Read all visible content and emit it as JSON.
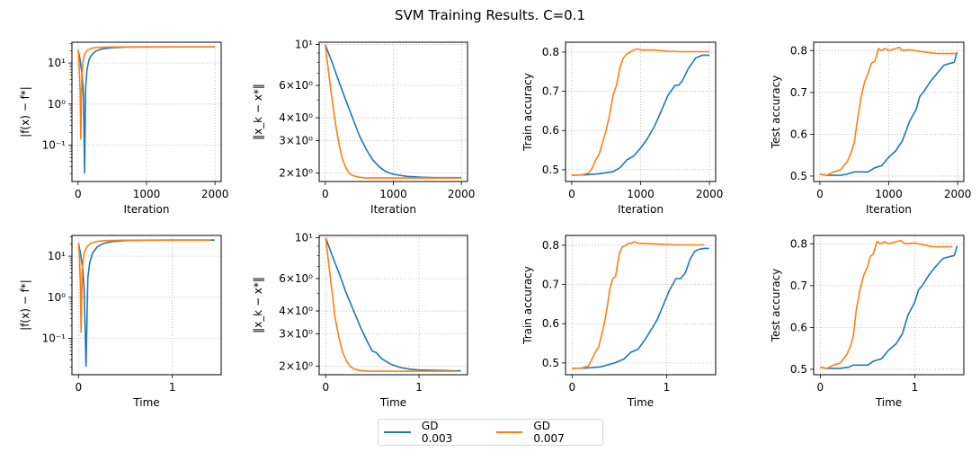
{
  "figure": {
    "title": "SVM Training Results. C=0.1"
  },
  "legend": {
    "placement": "bottom-center",
    "items": [
      {
        "label": "GD 0.003",
        "color": "#1f77b4"
      },
      {
        "label": "GD 0.007",
        "color": "#ff7f0e"
      }
    ]
  },
  "chart_data": [
    {
      "id": "func-gap-iter",
      "type": "line",
      "yscale": "log",
      "xlabel": "Iteration",
      "ylabel": "|f(x) − f*|",
      "xlim": [
        -90,
        2090
      ],
      "ylim": [
        0.013,
        32
      ],
      "xticks": [
        0,
        1000,
        2000
      ],
      "xtick_labels": [
        "0",
        "1000",
        "2000"
      ],
      "yticks": [
        0.1,
        1,
        10
      ],
      "ytick_labels": [
        "10⁻¹",
        "10⁰",
        "10¹"
      ],
      "grid": true,
      "series": [
        {
          "name": "GD 0.003",
          "x": [
            0,
            30,
            60,
            80,
            95,
            110,
            130,
            160,
            200,
            260,
            350,
            500,
            700,
            1000,
            1500,
            2000
          ],
          "y": [
            21,
            12,
            5,
            1.5,
            0.021,
            2.5,
            7,
            12,
            16,
            19.5,
            22,
            23.5,
            24.2,
            24.5,
            24.6,
            24.6
          ]
        },
        {
          "name": "GD 0.007",
          "x": [
            0,
            15,
            30,
            40,
            55,
            75,
            100,
            140,
            200,
            300,
            500,
            1000,
            1500,
            2000
          ],
          "y": [
            21,
            10,
            2,
            0.14,
            5,
            12,
            17,
            20.5,
            22.8,
            24,
            24.5,
            24.6,
            24.6,
            24.6
          ]
        }
      ]
    },
    {
      "id": "dist-iter",
      "type": "line",
      "yscale": "log",
      "xlabel": "Iteration",
      "ylabel": "‖x_k − x*‖",
      "xlim": [
        -90,
        2090
      ],
      "ylim": [
        1.8,
        10.3
      ],
      "xticks": [
        0,
        1000,
        2000
      ],
      "xtick_labels": [
        "0",
        "1000",
        "2000"
      ],
      "yticks": [
        2,
        3,
        4,
        6,
        10
      ],
      "ytick_labels": [
        "2×10⁰",
        "3×10⁰",
        "4×10⁰",
        "6×10⁰",
        "10¹"
      ],
      "grid": true,
      "series": [
        {
          "name": "GD 0.003",
          "x": [
            0,
            100,
            200,
            300,
            400,
            500,
            600,
            700,
            800,
            900,
            1000,
            1200,
            1400,
            1600,
            2000
          ],
          "y": [
            10,
            8.0,
            6.3,
            5.0,
            4.0,
            3.2,
            2.7,
            2.35,
            2.15,
            2.03,
            1.97,
            1.92,
            1.9,
            1.89,
            1.89
          ]
        },
        {
          "name": "GD 0.007",
          "x": [
            0,
            50,
            100,
            150,
            200,
            250,
            300,
            350,
            400,
            500,
            600,
            800,
            1000,
            2000
          ],
          "y": [
            10,
            7.0,
            5.0,
            3.7,
            2.9,
            2.4,
            2.15,
            2.0,
            1.94,
            1.9,
            1.88,
            1.88,
            1.88,
            1.88
          ]
        }
      ]
    },
    {
      "id": "train-acc-iter",
      "type": "line",
      "xlabel": "Iteration",
      "ylabel": "Train accuracy",
      "xlim": [
        -90,
        2090
      ],
      "ylim": [
        0.47,
        0.825
      ],
      "xticks": [
        0,
        1000,
        2000
      ],
      "xtick_labels": [
        "0",
        "1000",
        "2000"
      ],
      "yticks": [
        0.5,
        0.6,
        0.7,
        0.8
      ],
      "ytick_labels": [
        "0.5",
        "0.6",
        "0.7",
        "0.8"
      ],
      "grid": true,
      "series": [
        {
          "name": "GD 0.003",
          "x": [
            0,
            200,
            400,
            600,
            700,
            800,
            900,
            1000,
            1100,
            1200,
            1300,
            1400,
            1500,
            1550,
            1600,
            1700,
            1800,
            1900,
            2000
          ],
          "y": [
            0.486,
            0.487,
            0.49,
            0.495,
            0.505,
            0.525,
            0.535,
            0.555,
            0.58,
            0.61,
            0.65,
            0.69,
            0.715,
            0.715,
            0.725,
            0.76,
            0.785,
            0.792,
            0.792
          ]
        },
        {
          "name": "GD 0.007",
          "x": [
            0,
            150,
            250,
            300,
            350,
            400,
            450,
            500,
            550,
            600,
            650,
            700,
            750,
            800,
            850,
            900,
            950,
            1000,
            1200,
            1400,
            1600,
            2000
          ],
          "y": [
            0.486,
            0.487,
            0.492,
            0.505,
            0.525,
            0.54,
            0.57,
            0.6,
            0.64,
            0.69,
            0.715,
            0.76,
            0.785,
            0.795,
            0.8,
            0.805,
            0.808,
            0.805,
            0.805,
            0.802,
            0.801,
            0.801
          ]
        }
      ]
    },
    {
      "id": "test-acc-iter",
      "type": "line",
      "xlabel": "Iteration",
      "ylabel": "Test accuracy",
      "xlim": [
        -90,
        2090
      ],
      "ylim": [
        0.487,
        0.82
      ],
      "xticks": [
        0,
        1000,
        2000
      ],
      "xtick_labels": [
        "0",
        "1000",
        "2000"
      ],
      "yticks": [
        0.5,
        0.6,
        0.7,
        0.8
      ],
      "ytick_labels": [
        "0.5",
        "0.6",
        "0.7",
        "0.8"
      ],
      "grid": true,
      "series": [
        {
          "name": "GD 0.003",
          "x": [
            0,
            100,
            300,
            400,
            500,
            700,
            800,
            900,
            1000,
            1100,
            1200,
            1300,
            1400,
            1450,
            1500,
            1600,
            1700,
            1800,
            1900,
            1950,
            1990,
            2000
          ],
          "y": [
            0.505,
            0.502,
            0.502,
            0.505,
            0.51,
            0.51,
            0.52,
            0.525,
            0.545,
            0.56,
            0.585,
            0.63,
            0.66,
            0.69,
            0.7,
            0.725,
            0.745,
            0.765,
            0.77,
            0.772,
            0.795,
            0.795
          ]
        },
        {
          "name": "GD 0.007",
          "x": [
            0,
            100,
            200,
            300,
            400,
            450,
            500,
            550,
            600,
            650,
            700,
            750,
            800,
            850,
            900,
            950,
            1000,
            1100,
            1150,
            1200,
            1300,
            1500,
            1700,
            2000
          ],
          "y": [
            0.505,
            0.502,
            0.51,
            0.515,
            0.535,
            0.555,
            0.58,
            0.64,
            0.69,
            0.725,
            0.745,
            0.77,
            0.775,
            0.805,
            0.8,
            0.805,
            0.8,
            0.805,
            0.808,
            0.8,
            0.802,
            0.797,
            0.793,
            0.793
          ]
        }
      ]
    },
    {
      "id": "func-gap-time",
      "type": "line",
      "yscale": "log",
      "xlabel": "Time",
      "ylabel": "|f(x) − f*|",
      "xlim": [
        -0.07,
        1.52
      ],
      "ylim": [
        0.013,
        32
      ],
      "xticks": [
        0,
        1
      ],
      "xtick_labels": [
        "0",
        "1"
      ],
      "yticks": [
        0.1,
        1,
        10
      ],
      "ytick_labels": [
        "10⁻¹",
        "10⁰",
        "10¹"
      ],
      "grid": true,
      "series": [
        {
          "name": "GD 0.003",
          "x": [
            0,
            0.02,
            0.045,
            0.06,
            0.08,
            0.1,
            0.12,
            0.15,
            0.2,
            0.27,
            0.35,
            0.5,
            0.7,
            1.0,
            1.45
          ],
          "y": [
            21,
            12,
            5,
            1.5,
            0.021,
            3,
            7,
            12,
            17,
            20.5,
            22.5,
            24,
            24.5,
            24.6,
            24.6
          ]
        },
        {
          "name": "GD 0.007",
          "x": [
            0,
            0.01,
            0.02,
            0.028,
            0.04,
            0.06,
            0.09,
            0.13,
            0.2,
            0.3,
            0.5,
            1.0,
            1.4
          ],
          "y": [
            21,
            10,
            2,
            0.14,
            5,
            12,
            17,
            20.5,
            23,
            24,
            24.5,
            24.6,
            24.6
          ]
        }
      ]
    },
    {
      "id": "dist-time",
      "type": "line",
      "yscale": "log",
      "xlabel": "Time",
      "ylabel": "‖x_k − x*‖",
      "xlim": [
        -0.07,
        1.52
      ],
      "ylim": [
        1.8,
        10.3
      ],
      "xticks": [
        0,
        1
      ],
      "xtick_labels": [
        "0",
        "1"
      ],
      "yticks": [
        2,
        3,
        4,
        6,
        10
      ],
      "ytick_labels": [
        "2×10⁰",
        "3×10⁰",
        "4×10⁰",
        "6×10⁰",
        "10¹"
      ],
      "grid": true,
      "series": [
        {
          "name": "GD 0.003",
          "x": [
            0,
            0.07,
            0.15,
            0.22,
            0.3,
            0.38,
            0.45,
            0.5,
            0.54,
            0.6,
            0.7,
            0.8,
            0.9,
            1.0,
            1.2,
            1.45
          ],
          "y": [
            10,
            8.0,
            6.3,
            5.0,
            4.0,
            3.2,
            2.7,
            2.42,
            2.38,
            2.2,
            2.05,
            1.97,
            1.93,
            1.91,
            1.9,
            1.89
          ]
        },
        {
          "name": "GD 0.007",
          "x": [
            0,
            0.035,
            0.07,
            0.1,
            0.14,
            0.18,
            0.22,
            0.26,
            0.3,
            0.36,
            0.45,
            0.6,
            1.0,
            1.4
          ],
          "y": [
            10,
            7.0,
            5.0,
            3.7,
            2.9,
            2.4,
            2.15,
            2.0,
            1.94,
            1.9,
            1.88,
            1.88,
            1.88,
            1.88
          ]
        }
      ]
    },
    {
      "id": "train-acc-time",
      "type": "line",
      "xlabel": "Time",
      "ylabel": "Train accuracy",
      "xlim": [
        -0.07,
        1.52
      ],
      "ylim": [
        0.47,
        0.825
      ],
      "xticks": [
        0,
        1
      ],
      "xtick_labels": [
        "0",
        "1"
      ],
      "yticks": [
        0.5,
        0.6,
        0.7,
        0.8
      ],
      "ytick_labels": [
        "0.5",
        "0.6",
        "0.7",
        "0.8"
      ],
      "grid": true,
      "series": [
        {
          "name": "GD 0.003",
          "x": [
            0,
            0.15,
            0.3,
            0.45,
            0.55,
            0.62,
            0.7,
            0.8,
            0.9,
            0.97,
            1.03,
            1.1,
            1.15,
            1.2,
            1.25,
            1.3,
            1.35,
            1.4,
            1.45
          ],
          "y": [
            0.486,
            0.487,
            0.49,
            0.5,
            0.51,
            0.527,
            0.535,
            0.57,
            0.61,
            0.65,
            0.685,
            0.715,
            0.715,
            0.73,
            0.765,
            0.785,
            0.79,
            0.792,
            0.792
          ]
        },
        {
          "name": "GD 0.007",
          "x": [
            0,
            0.1,
            0.17,
            0.2,
            0.24,
            0.28,
            0.31,
            0.34,
            0.37,
            0.4,
            0.43,
            0.46,
            0.5,
            0.53,
            0.57,
            0.6,
            0.63,
            0.66,
            0.7,
            0.9,
            1.1,
            1.4
          ],
          "y": [
            0.486,
            0.487,
            0.492,
            0.505,
            0.525,
            0.54,
            0.57,
            0.6,
            0.64,
            0.69,
            0.715,
            0.72,
            0.78,
            0.795,
            0.8,
            0.805,
            0.805,
            0.809,
            0.805,
            0.803,
            0.801,
            0.801
          ]
        }
      ]
    },
    {
      "id": "test-acc-time",
      "type": "line",
      "xlabel": "Time",
      "ylabel": "Test accuracy",
      "xlim": [
        -0.07,
        1.52
      ],
      "ylim": [
        0.487,
        0.82
      ],
      "xticks": [
        0,
        1
      ],
      "xtick_labels": [
        "0",
        "1"
      ],
      "yticks": [
        0.5,
        0.6,
        0.7,
        0.8
      ],
      "ytick_labels": [
        "0.5",
        "0.6",
        "0.7",
        "0.8"
      ],
      "grid": true,
      "series": [
        {
          "name": "GD 0.003",
          "x": [
            0,
            0.07,
            0.2,
            0.3,
            0.35,
            0.5,
            0.57,
            0.65,
            0.72,
            0.8,
            0.87,
            0.93,
            1.0,
            1.04,
            1.08,
            1.15,
            1.22,
            1.3,
            1.38,
            1.42,
            1.45
          ],
          "y": [
            0.505,
            0.502,
            0.502,
            0.505,
            0.51,
            0.51,
            0.52,
            0.525,
            0.545,
            0.56,
            0.585,
            0.63,
            0.66,
            0.69,
            0.7,
            0.725,
            0.745,
            0.765,
            0.77,
            0.772,
            0.795
          ]
        },
        {
          "name": "GD 0.007",
          "x": [
            0,
            0.07,
            0.14,
            0.21,
            0.28,
            0.32,
            0.35,
            0.38,
            0.42,
            0.46,
            0.5,
            0.53,
            0.56,
            0.6,
            0.64,
            0.68,
            0.72,
            0.8,
            0.85,
            0.9,
            1.0,
            1.1,
            1.2,
            1.4
          ],
          "y": [
            0.505,
            0.502,
            0.51,
            0.515,
            0.535,
            0.555,
            0.58,
            0.64,
            0.69,
            0.725,
            0.745,
            0.77,
            0.775,
            0.805,
            0.8,
            0.805,
            0.8,
            0.805,
            0.808,
            0.8,
            0.802,
            0.797,
            0.793,
            0.793
          ]
        }
      ]
    }
  ]
}
